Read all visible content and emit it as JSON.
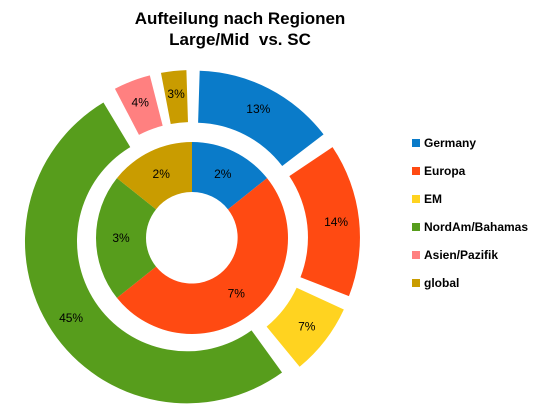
{
  "chart_data": {
    "type": "pie",
    "subtype": "exploded-double-doughnut",
    "title": [
      "Aufteilung nach Regionen",
      "Large/Mid  vs. SC"
    ],
    "categories": [
      "Germany",
      "Europa",
      "EM",
      "NordAm/Bahamas",
      "Asien/Pazifik",
      "global"
    ],
    "colors": [
      "#0a7bc9",
      "#ff4a12",
      "#ffd320",
      "#579d1c",
      "#ff8080",
      "#c99c00"
    ],
    "series": [
      {
        "ring": "inner",
        "values": [
          2,
          7,
          0,
          3,
          0,
          2
        ],
        "labels": [
          "2%",
          "7%",
          "",
          "3%",
          "",
          "2%"
        ]
      },
      {
        "ring": "outer",
        "values": [
          13,
          14,
          7,
          45,
          4,
          3
        ],
        "labels": [
          "13%",
          "14%",
          "7%",
          "45%",
          "4%",
          "3%"
        ]
      }
    ],
    "legend_position": "right"
  }
}
